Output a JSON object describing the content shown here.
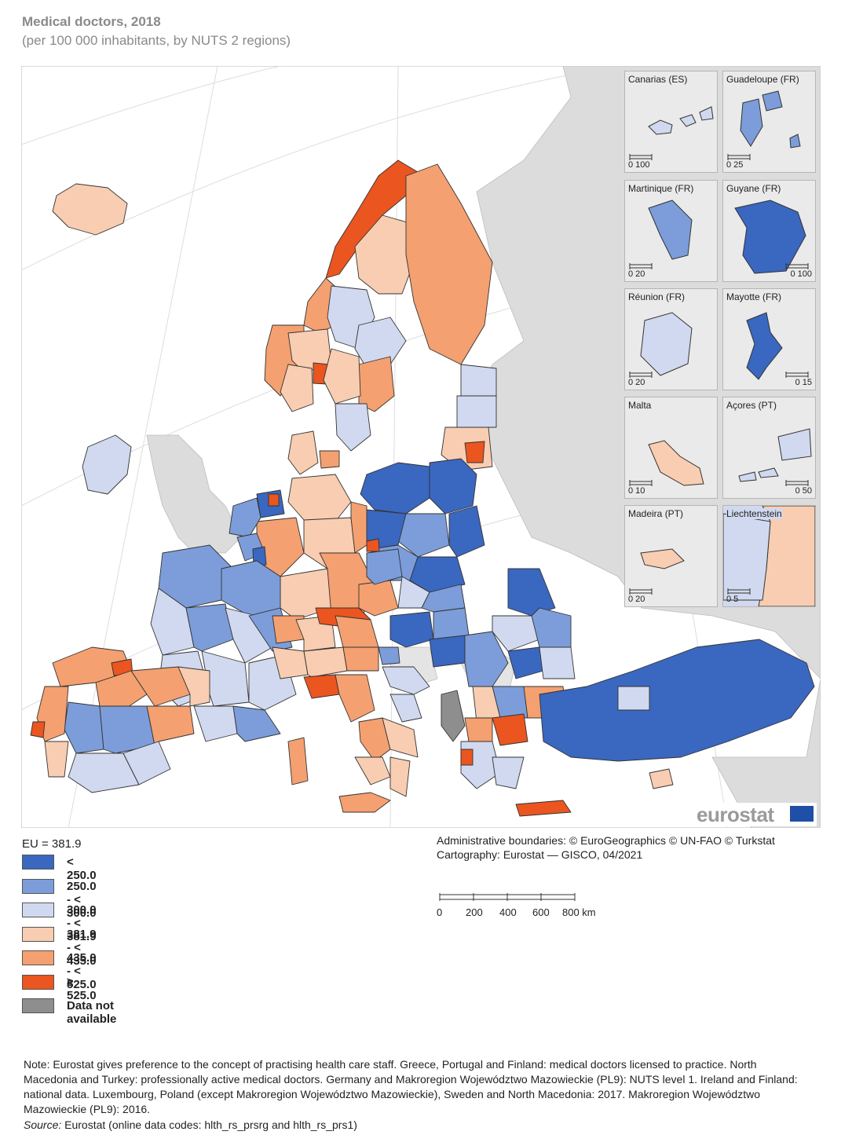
{
  "title": "Medical doctors, 2018",
  "subtitle": "(per 100 000 inhabitants, by NUTS 2 regions)",
  "eu_reference": "EU = 381.9",
  "legend": [
    {
      "label": "< 250.0",
      "color": "#3a67bf"
    },
    {
      "label": "250.0 - < 300.0",
      "color": "#7c9dd9"
    },
    {
      "label": "300.0 - < 381.9",
      "color": "#d0d9ef"
    },
    {
      "label": "381.9 - < 435.0",
      "color": "#f8cdb1"
    },
    {
      "label": "435.0 - < 525.0",
      "color": "#f4a070"
    },
    {
      "label": "≥ 525.0",
      "color": "#eb5520"
    },
    {
      "label": "Data not available",
      "color": "#8e8e8e"
    }
  ],
  "colors": {
    "sea": "#ffffff",
    "non_covered_land": "#dcdcdc",
    "inset_background": "#eaeaea",
    "border": "#333333"
  },
  "insets": [
    {
      "name": "Canarias (ES)",
      "scale": "0 100",
      "fill_class": 2
    },
    {
      "name": "Guadeloupe (FR)",
      "scale": "0 25",
      "fill_class": 1
    },
    {
      "name": "Martinique (FR)",
      "scale": "0 20",
      "fill_class": 1
    },
    {
      "name": "Guyane (FR)",
      "scale": "0 100",
      "fill_class": 0
    },
    {
      "name": "Réunion (FR)",
      "scale": "0 20",
      "fill_class": 2
    },
    {
      "name": "Mayotte (FR)",
      "scale": "0 15",
      "fill_class": 0
    },
    {
      "name": "Malta",
      "scale": "0 10",
      "fill_class": 3
    },
    {
      "name": "Açores (PT)",
      "scale": "0 50",
      "fill_class": 2
    },
    {
      "name": "Madeira (PT)",
      "scale": "0 20",
      "fill_class": 3
    },
    {
      "name": "Liechtenstein",
      "scale": "0 5",
      "fill_class": 2
    }
  ],
  "credits": {
    "line1": "Administrative boundaries: © EuroGeographics © UN-FAO © Turkstat",
    "line2": "Cartography: Eurostat — GISCO, 04/2021"
  },
  "scale_bar": {
    "ticks": [
      "0",
      "200",
      "400",
      "600",
      "800 km"
    ]
  },
  "logo_text": "eurostat",
  "note": "Note: Eurostat gives preference to the concept of practising health care staff. Greece, Portugal and Finland: medical doctors licensed to practice. North Macedonia and Turkey: professionally active medical doctors. Germany and Makroregion Województwo Mazowieckie (PL9): NUTS level 1. Ireland and Finland: national data. Luxembourg, Poland (except Makroregion Województwo Mazowieckie), Sweden and North Macedonia:  2017. Makroregion Województwo Mazowieckie (PL9): 2016.",
  "source": {
    "label": "Source:",
    "text": " Eurostat (online data codes: hlth_rs_prsrg and hlth_rs_prs1)"
  }
}
